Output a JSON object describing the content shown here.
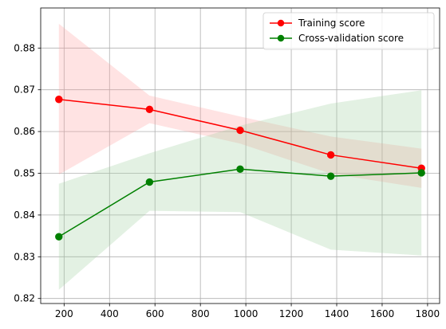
{
  "chart_data": {
    "type": "line",
    "x": [
      177,
      576,
      975,
      1374,
      1773
    ],
    "series": [
      {
        "name": "Training score",
        "color": "#ff0000",
        "band_color": "#ff9999",
        "values": [
          0.8677,
          0.8653,
          0.8603,
          0.8544,
          0.8512
        ],
        "lower": [
          0.8497,
          0.862,
          0.8571,
          0.8499,
          0.8465
        ],
        "upper": [
          0.8858,
          0.8686,
          0.8636,
          0.8588,
          0.8559
        ]
      },
      {
        "name": "Cross-validation score",
        "color": "#008000",
        "band_color": "#99cc99",
        "values": [
          0.8348,
          0.8479,
          0.851,
          0.8493,
          0.8501
        ],
        "lower": [
          0.8221,
          0.841,
          0.8407,
          0.8317,
          0.8303
        ],
        "upper": [
          0.8475,
          0.8548,
          0.8614,
          0.8667,
          0.8699
        ]
      }
    ],
    "x_ticks": [
      "200",
      "400",
      "600",
      "800",
      "1000",
      "1200",
      "1400",
      "1600",
      "1800"
    ],
    "y_ticks": [
      "0.82",
      "0.83",
      "0.84",
      "0.85",
      "0.86",
      "0.87",
      "0.88"
    ],
    "xlim": [
      97,
      1853
    ],
    "ylim": [
      0.8188,
      0.8896
    ],
    "grid": true,
    "legend_position": "top-right"
  }
}
